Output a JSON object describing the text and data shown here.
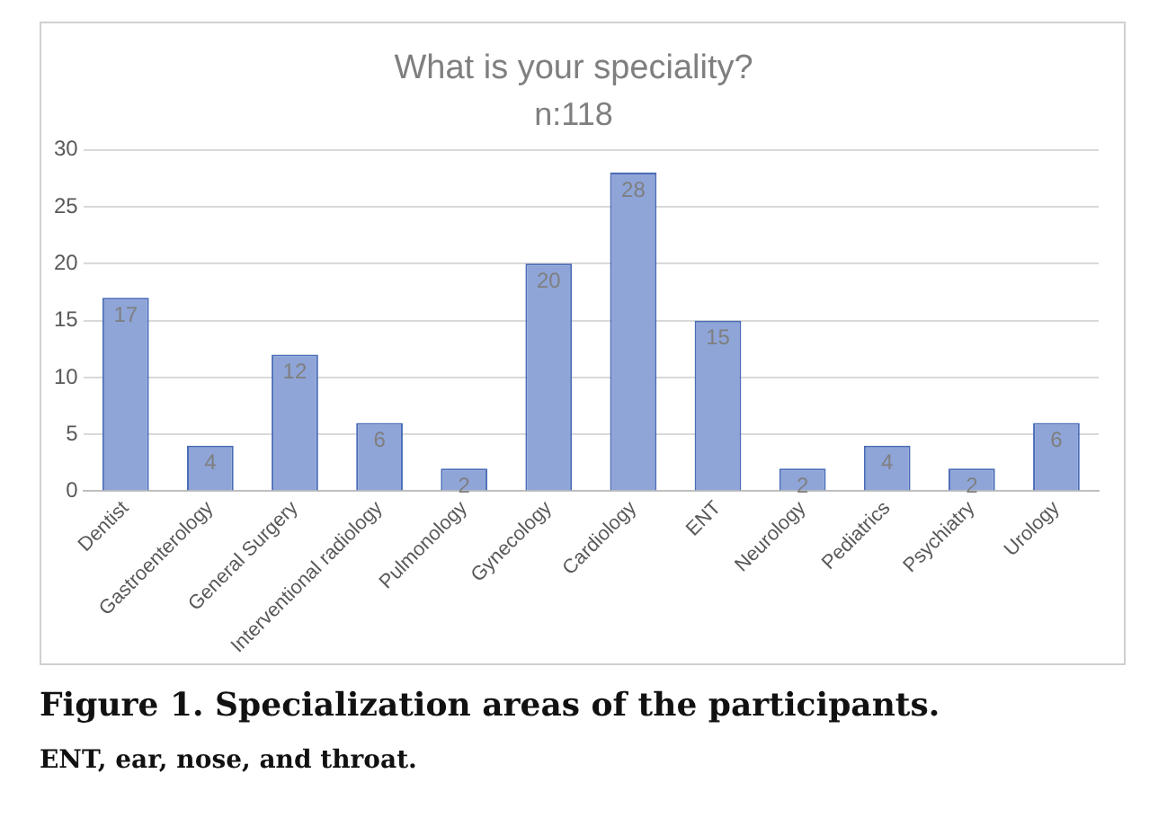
{
  "chart_data": {
    "type": "bar",
    "title": "What is your speciality?",
    "subtitle": "n:118",
    "categories": [
      "Dentist",
      "Gastroenterology",
      "General Surgery",
      "Interventional radiology",
      "Pulmonology",
      "Gynecology",
      "Cardiology",
      "ENT",
      "Neurology",
      "Pediatrics",
      "Psychiatry",
      "Urology"
    ],
    "values": [
      17,
      4,
      12,
      6,
      2,
      20,
      28,
      15,
      2,
      4,
      2,
      6
    ],
    "color": "#8fa5d8",
    "ylim": [
      0,
      30
    ],
    "yticks": [
      0,
      5,
      10,
      15,
      20,
      25,
      30
    ],
    "grid": "y",
    "legend": false,
    "data_labels": true,
    "annotations": [
      "Figure 1. Specialization areas of the participants.",
      "ENT, ear, nose, and throat."
    ]
  }
}
